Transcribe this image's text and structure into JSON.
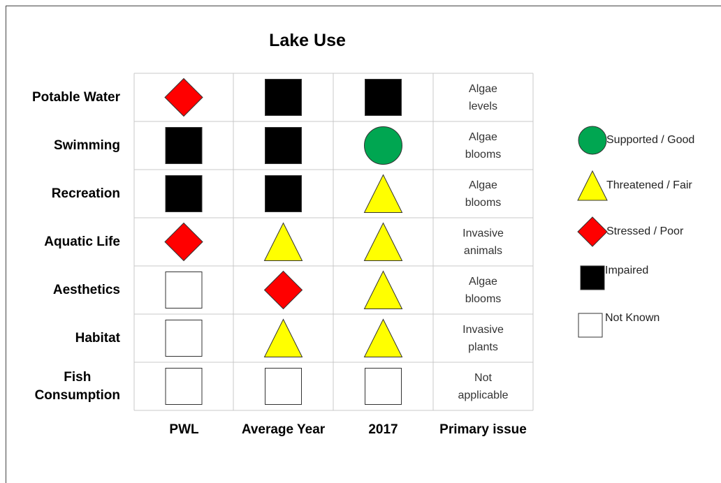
{
  "title": "Lake Use",
  "columns": [
    "PWL",
    "Average Year",
    "2017",
    "Primary issue"
  ],
  "legend": [
    {
      "label": "Supported / Good",
      "color": "#00a651"
    },
    {
      "label": "Threatened / Fair",
      "color": "#ffff00"
    },
    {
      "label": "Stressed / Poor",
      "color": "#ff0000"
    },
    {
      "label": "Impaired",
      "color": "#000000"
    },
    {
      "label": "Not Known",
      "color": "#ffffff"
    }
  ],
  "rows": [
    {
      "label": "Potable Water",
      "status": [
        2,
        3,
        3
      ],
      "issue": "Algae\nlevels"
    },
    {
      "label": "Swimming",
      "status": [
        3,
        3,
        0
      ],
      "issue": "Algae\nblooms"
    },
    {
      "label": "Recreation",
      "status": [
        3,
        3,
        1
      ],
      "issue": "Algae\nblooms"
    },
    {
      "label": "Aquatic Life",
      "status": [
        2,
        1,
        1
      ],
      "issue": "Invasive\nanimals"
    },
    {
      "label": "Aesthetics",
      "status": [
        4,
        2,
        1
      ],
      "issue": "Algae\nblooms"
    },
    {
      "label": "Habitat",
      "status": [
        4,
        1,
        1
      ],
      "issue": "Invasive\nplants"
    },
    {
      "label": "Fish\nConsumption",
      "status": [
        4,
        4,
        4
      ],
      "issue": "Not\napplicable"
    }
  ]
}
